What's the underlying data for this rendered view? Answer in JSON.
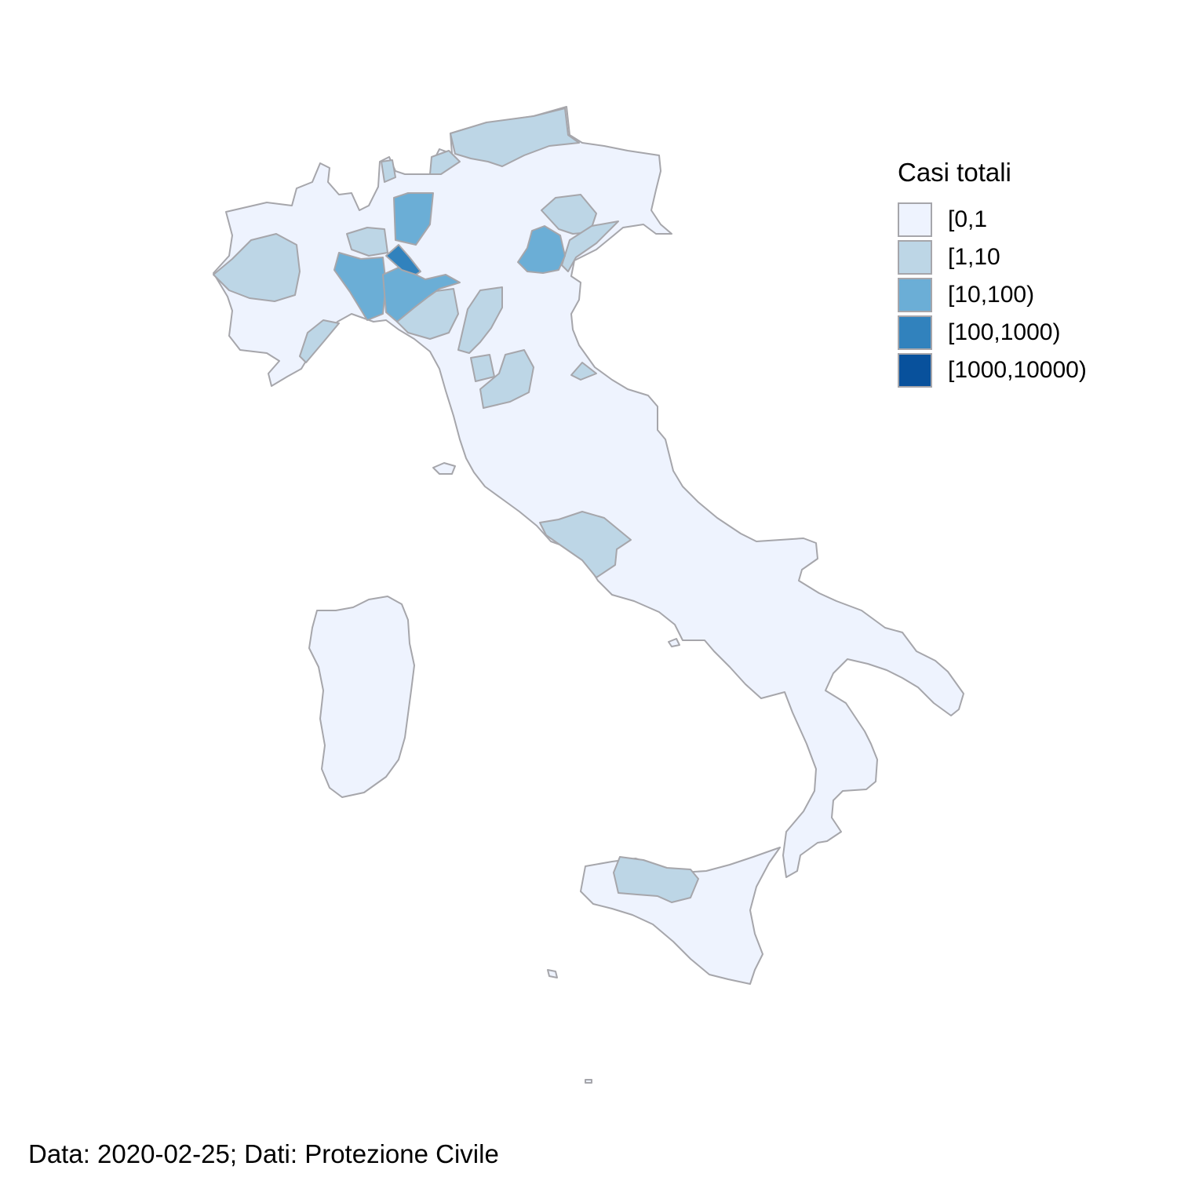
{
  "legend": {
    "title": "Casi totali",
    "items": [
      {
        "label": "[0,1",
        "color": "#eef3fe"
      },
      {
        "label": "[1,10",
        "color": "#bdd6e6"
      },
      {
        "label": "[10,100)",
        "color": "#6baed6"
      },
      {
        "label": "[100,1000)",
        "color": "#3182bd"
      },
      {
        "label": "[1000,10000)",
        "color": "#08519c"
      }
    ]
  },
  "caption": "Data: 2020-02-25; Dati: Protezione Civile",
  "colors": {
    "border": "#a6a6ab",
    "background": "#ffffff"
  }
}
